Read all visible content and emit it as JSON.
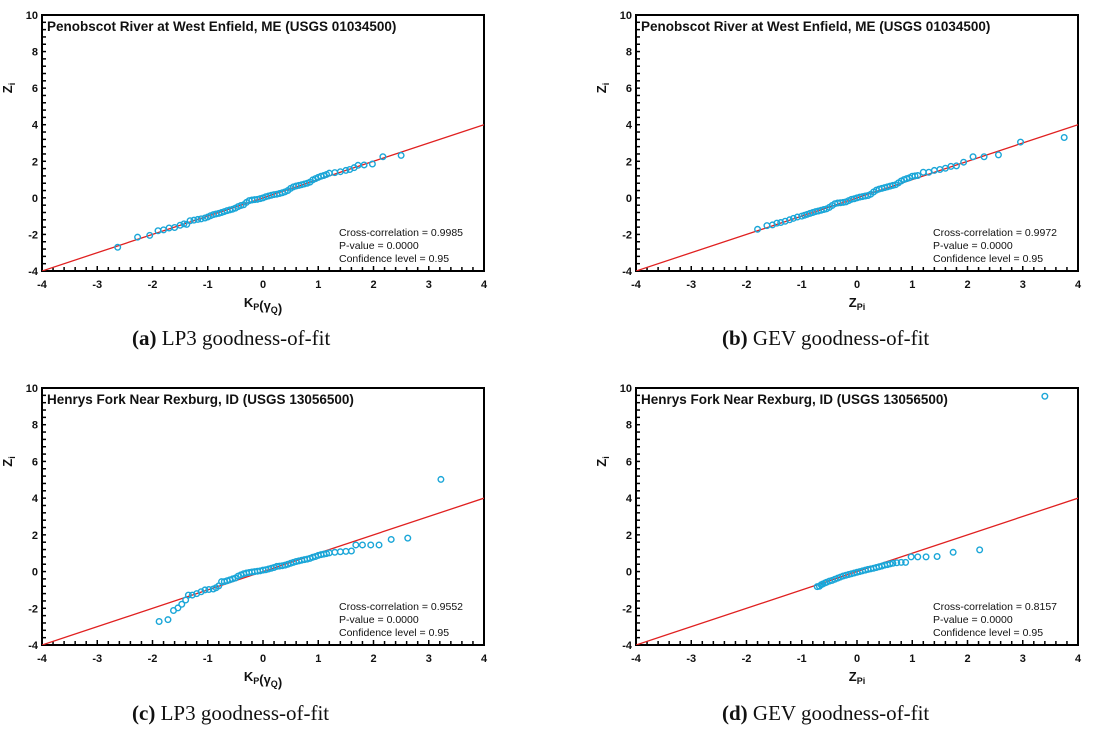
{
  "colors": {
    "points": "#1aa6d8",
    "fit_line": "#e02020",
    "frame": "#000000"
  },
  "chart_data": [
    {
      "id": "a",
      "type": "scatter",
      "title": "Penobscot River at West Enfield, ME (USGS 01034500)",
      "caption_label": "(a)",
      "caption_text": " LP3 goodness-of-fit",
      "xlabel_main": "K",
      "xlabel_sub": "P",
      "xlabel_tail": "(γ",
      "xlabel_tail_sub": "Q",
      "xlabel_close": ")",
      "ylabel_main": "Z",
      "ylabel_sub": "i",
      "xlim": [
        -4,
        4
      ],
      "ylim": [
        -4,
        10
      ],
      "xticks": [
        -4,
        -3,
        -2,
        -1,
        0,
        1,
        2,
        3,
        4
      ],
      "yticks": [
        -4,
        -2,
        0,
        2,
        4,
        6,
        8,
        10
      ],
      "fit_line": {
        "x": [
          -4,
          4
        ],
        "y": [
          -4,
          4
        ]
      },
      "stats": [
        "Cross-correlation = 0.9985",
        "P-value = 0.0000",
        "Confidence level = 0.95"
      ],
      "points": [
        [
          -2.63,
          -2.7
        ],
        [
          -2.27,
          -2.15
        ],
        [
          -2.05,
          -2.05
        ],
        [
          -1.9,
          -1.8
        ],
        [
          -1.8,
          -1.75
        ],
        [
          -1.7,
          -1.65
        ],
        [
          -1.6,
          -1.62
        ],
        [
          -1.5,
          -1.5
        ],
        [
          -1.43,
          -1.42
        ],
        [
          -1.38,
          -1.45
        ],
        [
          -1.32,
          -1.25
        ],
        [
          -1.25,
          -1.22
        ],
        [
          -1.18,
          -1.18
        ],
        [
          -1.12,
          -1.15
        ],
        [
          -1.05,
          -1.1
        ],
        [
          -1.0,
          -1.05
        ],
        [
          -0.95,
          -0.98
        ],
        [
          -0.9,
          -0.92
        ],
        [
          -0.85,
          -0.88
        ],
        [
          -0.8,
          -0.85
        ],
        [
          -0.75,
          -0.8
        ],
        [
          -0.7,
          -0.75
        ],
        [
          -0.65,
          -0.7
        ],
        [
          -0.6,
          -0.66
        ],
        [
          -0.55,
          -0.62
        ],
        [
          -0.5,
          -0.56
        ],
        [
          -0.45,
          -0.48
        ],
        [
          -0.4,
          -0.42
        ],
        [
          -0.35,
          -0.38
        ],
        [
          -0.3,
          -0.25
        ],
        [
          -0.25,
          -0.15
        ],
        [
          -0.2,
          -0.12
        ],
        [
          -0.15,
          -0.1
        ],
        [
          -0.1,
          -0.08
        ],
        [
          -0.05,
          -0.04
        ],
        [
          0.0,
          0.0
        ],
        [
          0.05,
          0.06
        ],
        [
          0.1,
          0.1
        ],
        [
          0.15,
          0.14
        ],
        [
          0.2,
          0.18
        ],
        [
          0.25,
          0.2
        ],
        [
          0.3,
          0.24
        ],
        [
          0.35,
          0.28
        ],
        [
          0.4,
          0.33
        ],
        [
          0.45,
          0.4
        ],
        [
          0.5,
          0.52
        ],
        [
          0.55,
          0.6
        ],
        [
          0.6,
          0.65
        ],
        [
          0.65,
          0.68
        ],
        [
          0.7,
          0.72
        ],
        [
          0.75,
          0.76
        ],
        [
          0.8,
          0.8
        ],
        [
          0.85,
          0.86
        ],
        [
          0.9,
          0.98
        ],
        [
          0.95,
          1.05
        ],
        [
          1.0,
          1.12
        ],
        [
          1.05,
          1.18
        ],
        [
          1.1,
          1.22
        ],
        [
          1.15,
          1.28
        ],
        [
          1.2,
          1.35
        ],
        [
          1.3,
          1.38
        ],
        [
          1.4,
          1.43
        ],
        [
          1.5,
          1.5
        ],
        [
          1.57,
          1.55
        ],
        [
          1.65,
          1.65
        ],
        [
          1.72,
          1.78
        ],
        [
          1.83,
          1.8
        ],
        [
          1.98,
          1.85
        ],
        [
          2.17,
          2.25
        ],
        [
          2.5,
          2.32
        ]
      ]
    },
    {
      "id": "b",
      "type": "scatter",
      "title": "Penobscot River at West Enfield, ME (USGS 01034500)",
      "caption_label": "(b)",
      "caption_text": " GEV goodness-of-fit",
      "xlabel_main": "Z",
      "xlabel_sub": "Pi",
      "xlabel_tail": "",
      "xlabel_tail_sub": "",
      "xlabel_close": "",
      "ylabel_main": "Z",
      "ylabel_sub": "i",
      "xlim": [
        -4,
        4
      ],
      "ylim": [
        -4,
        10
      ],
      "xticks": [
        -4,
        -3,
        -2,
        -1,
        0,
        1,
        2,
        3,
        4
      ],
      "yticks": [
        -4,
        -2,
        0,
        2,
        4,
        6,
        8,
        10
      ],
      "fit_line": {
        "x": [
          -4,
          4
        ],
        "y": [
          -4,
          4
        ]
      },
      "stats": [
        "Cross-correlation = 0.9972",
        "P-value = 0.0000",
        "Confidence level = 0.95"
      ],
      "points": [
        [
          -1.8,
          -1.72
        ],
        [
          -1.63,
          -1.52
        ],
        [
          -1.53,
          -1.48
        ],
        [
          -1.45,
          -1.38
        ],
        [
          -1.38,
          -1.35
        ],
        [
          -1.3,
          -1.28
        ],
        [
          -1.22,
          -1.2
        ],
        [
          -1.15,
          -1.12
        ],
        [
          -1.08,
          -1.05
        ],
        [
          -1.0,
          -1.0
        ],
        [
          -0.95,
          -0.95
        ],
        [
          -0.9,
          -0.9
        ],
        [
          -0.85,
          -0.85
        ],
        [
          -0.8,
          -0.8
        ],
        [
          -0.75,
          -0.75
        ],
        [
          -0.7,
          -0.72
        ],
        [
          -0.65,
          -0.68
        ],
        [
          -0.6,
          -0.64
        ],
        [
          -0.55,
          -0.6
        ],
        [
          -0.5,
          -0.52
        ],
        [
          -0.45,
          -0.42
        ],
        [
          -0.4,
          -0.32
        ],
        [
          -0.35,
          -0.28
        ],
        [
          -0.3,
          -0.27
        ],
        [
          -0.25,
          -0.25
        ],
        [
          -0.2,
          -0.22
        ],
        [
          -0.15,
          -0.15
        ],
        [
          -0.1,
          -0.08
        ],
        [
          -0.05,
          -0.05
        ],
        [
          0.0,
          0.0
        ],
        [
          0.05,
          0.04
        ],
        [
          0.1,
          0.07
        ],
        [
          0.15,
          0.1
        ],
        [
          0.2,
          0.13
        ],
        [
          0.25,
          0.2
        ],
        [
          0.3,
          0.32
        ],
        [
          0.35,
          0.42
        ],
        [
          0.4,
          0.48
        ],
        [
          0.45,
          0.52
        ],
        [
          0.5,
          0.56
        ],
        [
          0.55,
          0.6
        ],
        [
          0.6,
          0.64
        ],
        [
          0.65,
          0.68
        ],
        [
          0.7,
          0.72
        ],
        [
          0.75,
          0.82
        ],
        [
          0.8,
          0.92
        ],
        [
          0.85,
          1.0
        ],
        [
          0.9,
          1.05
        ],
        [
          0.95,
          1.1
        ],
        [
          1.0,
          1.18
        ],
        [
          1.05,
          1.2
        ],
        [
          1.1,
          1.22
        ],
        [
          1.2,
          1.4
        ],
        [
          1.3,
          1.4
        ],
        [
          1.4,
          1.5
        ],
        [
          1.5,
          1.55
        ],
        [
          1.6,
          1.62
        ],
        [
          1.7,
          1.72
        ],
        [
          1.8,
          1.75
        ],
        [
          1.93,
          1.95
        ],
        [
          2.1,
          2.25
        ],
        [
          2.3,
          2.25
        ],
        [
          2.56,
          2.35
        ],
        [
          2.96,
          3.05
        ],
        [
          3.75,
          3.3
        ]
      ]
    },
    {
      "id": "c",
      "type": "scatter",
      "title": "Henrys Fork Near Rexburg, ID (USGS 13056500)",
      "caption_label": "(c)",
      "caption_text": " LP3 goodness-of-fit",
      "xlabel_main": "K",
      "xlabel_sub": "P",
      "xlabel_tail": "(γ",
      "xlabel_tail_sub": "Q",
      "xlabel_close": ")",
      "ylabel_main": "Z",
      "ylabel_sub": "i",
      "xlim": [
        -4,
        4
      ],
      "ylim": [
        -4,
        10
      ],
      "xticks": [
        -4,
        -3,
        -2,
        -1,
        0,
        1,
        2,
        3,
        4
      ],
      "yticks": [
        -4,
        -2,
        0,
        2,
        4,
        6,
        8,
        10
      ],
      "fit_line": {
        "x": [
          -4,
          4
        ],
        "y": [
          -4,
          4
        ]
      },
      "stats": [
        "Cross-correlation = 0.9552",
        "P-value = 0.0000",
        "Confidence level = 0.95"
      ],
      "points": [
        [
          -1.88,
          -2.72
        ],
        [
          -1.72,
          -2.62
        ],
        [
          -1.62,
          -2.12
        ],
        [
          -1.54,
          -1.98
        ],
        [
          -1.47,
          -1.78
        ],
        [
          -1.4,
          -1.55
        ],
        [
          -1.35,
          -1.28
        ],
        [
          -1.28,
          -1.28
        ],
        [
          -1.2,
          -1.2
        ],
        [
          -1.12,
          -1.1
        ],
        [
          -1.05,
          -1.0
        ],
        [
          -0.98,
          -0.98
        ],
        [
          -0.9,
          -0.95
        ],
        [
          -0.85,
          -0.88
        ],
        [
          -0.8,
          -0.78
        ],
        [
          -0.75,
          -0.55
        ],
        [
          -0.7,
          -0.55
        ],
        [
          -0.65,
          -0.5
        ],
        [
          -0.6,
          -0.45
        ],
        [
          -0.55,
          -0.4
        ],
        [
          -0.5,
          -0.35
        ],
        [
          -0.45,
          -0.25
        ],
        [
          -0.4,
          -0.18
        ],
        [
          -0.35,
          -0.12
        ],
        [
          -0.3,
          -0.08
        ],
        [
          -0.25,
          -0.05
        ],
        [
          -0.2,
          -0.02
        ],
        [
          -0.15,
          0.0
        ],
        [
          -0.1,
          0.02
        ],
        [
          -0.05,
          0.04
        ],
        [
          0.0,
          0.08
        ],
        [
          0.05,
          0.1
        ],
        [
          0.1,
          0.14
        ],
        [
          0.15,
          0.18
        ],
        [
          0.2,
          0.22
        ],
        [
          0.25,
          0.28
        ],
        [
          0.3,
          0.3
        ],
        [
          0.35,
          0.32
        ],
        [
          0.4,
          0.35
        ],
        [
          0.45,
          0.4
        ],
        [
          0.5,
          0.45
        ],
        [
          0.55,
          0.5
        ],
        [
          0.6,
          0.55
        ],
        [
          0.65,
          0.58
        ],
        [
          0.7,
          0.62
        ],
        [
          0.75,
          0.65
        ],
        [
          0.8,
          0.68
        ],
        [
          0.85,
          0.72
        ],
        [
          0.9,
          0.78
        ],
        [
          0.95,
          0.82
        ],
        [
          1.0,
          0.88
        ],
        [
          1.05,
          0.92
        ],
        [
          1.1,
          0.95
        ],
        [
          1.15,
          0.98
        ],
        [
          1.2,
          1.02
        ],
        [
          1.3,
          1.05
        ],
        [
          1.4,
          1.08
        ],
        [
          1.5,
          1.1
        ],
        [
          1.6,
          1.12
        ],
        [
          1.68,
          1.45
        ],
        [
          1.8,
          1.45
        ],
        [
          1.95,
          1.45
        ],
        [
          2.1,
          1.45
        ],
        [
          2.32,
          1.75
        ],
        [
          2.62,
          1.82
        ],
        [
          3.22,
          5.02
        ]
      ]
    },
    {
      "id": "d",
      "type": "scatter",
      "title": "Henrys Fork Near Rexburg, ID (USGS 13056500)",
      "caption_label": "(d)",
      "caption_text": " GEV goodness-of-fit",
      "xlabel_main": "Z",
      "xlabel_sub": "Pi",
      "xlabel_tail": "",
      "xlabel_tail_sub": "",
      "xlabel_close": "",
      "ylabel_main": "Z",
      "ylabel_sub": "i",
      "xlim": [
        -4,
        4
      ],
      "ylim": [
        -4,
        10
      ],
      "xticks": [
        -4,
        -3,
        -2,
        -1,
        0,
        1,
        2,
        3,
        4
      ],
      "yticks": [
        -4,
        -2,
        0,
        2,
        4,
        6,
        8,
        10
      ],
      "fit_line": {
        "x": [
          -4,
          4
        ],
        "y": [
          -4,
          4
        ]
      },
      "stats": [
        "Cross-correlation = 0.8157",
        "P-value = 0.0000",
        "Confidence level = 0.95"
      ],
      "points": [
        [
          -0.72,
          -0.82
        ],
        [
          -0.68,
          -0.8
        ],
        [
          -0.65,
          -0.72
        ],
        [
          -0.62,
          -0.68
        ],
        [
          -0.58,
          -0.62
        ],
        [
          -0.55,
          -0.58
        ],
        [
          -0.5,
          -0.52
        ],
        [
          -0.45,
          -0.48
        ],
        [
          -0.4,
          -0.42
        ],
        [
          -0.35,
          -0.36
        ],
        [
          -0.3,
          -0.3
        ],
        [
          -0.25,
          -0.24
        ],
        [
          -0.2,
          -0.2
        ],
        [
          -0.15,
          -0.16
        ],
        [
          -0.1,
          -0.12
        ],
        [
          -0.05,
          -0.08
        ],
        [
          0.0,
          -0.04
        ],
        [
          0.05,
          0.0
        ],
        [
          0.1,
          0.04
        ],
        [
          0.15,
          0.08
        ],
        [
          0.2,
          0.12
        ],
        [
          0.25,
          0.15
        ],
        [
          0.3,
          0.18
        ],
        [
          0.35,
          0.22
        ],
        [
          0.4,
          0.26
        ],
        [
          0.45,
          0.3
        ],
        [
          0.5,
          0.35
        ],
        [
          0.55,
          0.38
        ],
        [
          0.6,
          0.42
        ],
        [
          0.65,
          0.45
        ],
        [
          0.72,
          0.48
        ],
        [
          0.8,
          0.5
        ],
        [
          0.88,
          0.5
        ],
        [
          0.98,
          0.8
        ],
        [
          1.1,
          0.8
        ],
        [
          1.25,
          0.8
        ],
        [
          1.45,
          0.82
        ],
        [
          1.74,
          1.05
        ],
        [
          2.22,
          1.18
        ],
        [
          3.4,
          9.55
        ]
      ]
    }
  ]
}
